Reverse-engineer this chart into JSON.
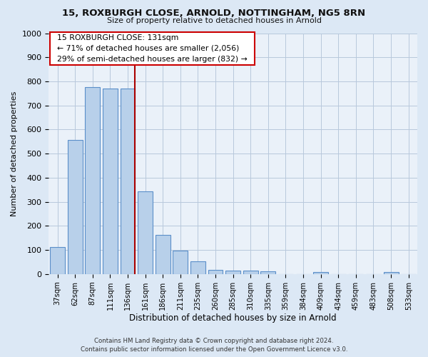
{
  "title": "15, ROXBURGH CLOSE, ARNOLD, NOTTINGHAM, NG5 8RN",
  "subtitle": "Size of property relative to detached houses in Arnold",
  "xlabel": "Distribution of detached houses by size in Arnold",
  "ylabel": "Number of detached properties",
  "categories": [
    "37sqm",
    "62sqm",
    "87sqm",
    "111sqm",
    "136sqm",
    "161sqm",
    "186sqm",
    "211sqm",
    "235sqm",
    "260sqm",
    "285sqm",
    "310sqm",
    "335sqm",
    "359sqm",
    "384sqm",
    "409sqm",
    "434sqm",
    "459sqm",
    "483sqm",
    "508sqm",
    "533sqm"
  ],
  "values": [
    113,
    557,
    775,
    770,
    770,
    343,
    163,
    97,
    53,
    18,
    13,
    13,
    10,
    0,
    0,
    8,
    0,
    0,
    0,
    8,
    0
  ],
  "bar_color": "#b8d0ea",
  "bar_edge_color": "#5b8fc9",
  "annotation_title": "15 ROXBURGH CLOSE: 131sqm",
  "annotation_line1": "← 71% of detached houses are smaller (2,056)",
  "annotation_line2": "29% of semi-detached houses are larger (832) →",
  "annotation_box_facecolor": "#ffffff",
  "annotation_box_edgecolor": "#cc0000",
  "red_line_color": "#aa0000",
  "red_line_x": 4.4,
  "ylim": [
    0,
    1000
  ],
  "yticks": [
    0,
    100,
    200,
    300,
    400,
    500,
    600,
    700,
    800,
    900,
    1000
  ],
  "footer_line1": "Contains HM Land Registry data © Crown copyright and database right 2024.",
  "footer_line2": "Contains public sector information licensed under the Open Government Licence v3.0.",
  "bg_color": "#dce8f5",
  "plot_bg_color": "#eaf1f9",
  "grid_color": "#b8c8dc"
}
